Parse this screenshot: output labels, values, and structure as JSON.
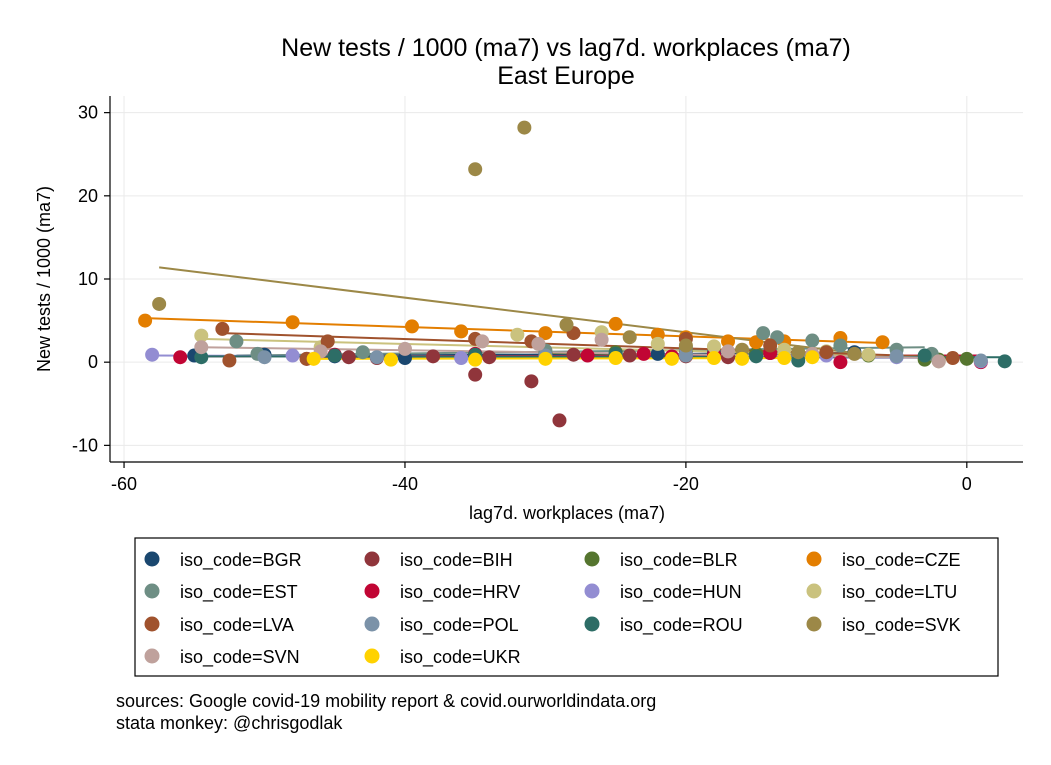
{
  "chart_data": {
    "type": "scatter",
    "title": "New tests / 1000 (ma7) vs lag7d. workplaces (ma7)",
    "subtitle": "East Europe",
    "xlabel": "lag7d. workplaces (ma7)",
    "ylabel": "New tests / 1000 (ma7)",
    "xlim": [
      -61,
      4
    ],
    "ylim": [
      -12,
      32
    ],
    "xticks": [
      -60,
      -40,
      -20,
      0
    ],
    "yticks": [
      -10,
      0,
      10,
      20,
      30
    ],
    "grid": true,
    "legend_position": "bottom",
    "series": [
      {
        "name": "iso_code=BGR",
        "color": "#1a476f",
        "points": [
          [
            -55,
            0.8
          ],
          [
            -50,
            0.9
          ],
          [
            -45,
            0.7
          ],
          [
            -40,
            0.5
          ],
          [
            -35,
            0.9
          ],
          [
            -30,
            1.0
          ],
          [
            -25,
            0.8
          ],
          [
            -22,
            1.0
          ],
          [
            -20,
            0.9
          ],
          [
            -18,
            1.1
          ],
          [
            -15,
            1.0
          ],
          [
            -14,
            1.1
          ],
          [
            -12,
            0.9
          ],
          [
            -10,
            1.0
          ],
          [
            -8,
            1.2
          ]
        ],
        "fit": [
          [
            -55,
            0.7
          ],
          [
            -8,
            1.1
          ]
        ]
      },
      {
        "name": "iso_code=BIH",
        "color": "#90353b",
        "points": [
          [
            -35,
            -1.5
          ],
          [
            -31,
            -2.3
          ],
          [
            -29,
            -7.0
          ],
          [
            -47,
            0.4
          ],
          [
            -44,
            0.6
          ],
          [
            -42,
            0.5
          ],
          [
            -38,
            0.7
          ],
          [
            -34,
            0.6
          ],
          [
            -28,
            0.9
          ],
          [
            -24,
            0.8
          ],
          [
            -20,
            0.7
          ],
          [
            -17,
            0.6
          ],
          [
            -12,
            0.8
          ]
        ],
        "fit": [
          [
            -47,
            0.6
          ],
          [
            -12,
            0.8
          ]
        ]
      },
      {
        "name": "iso_code=BLR",
        "color": "#55752f",
        "points": [
          [
            -30,
            1.0
          ],
          [
            -25,
            1.2
          ],
          [
            -20,
            1.1
          ],
          [
            -15,
            1.0
          ],
          [
            -10,
            0.9
          ],
          [
            -7,
            0.8
          ],
          [
            -3,
            0.3
          ],
          [
            -2,
            0.3
          ],
          [
            0,
            0.4
          ]
        ],
        "fit": [
          [
            -30,
            1.1
          ],
          [
            0,
            0.5
          ]
        ]
      },
      {
        "name": "iso_code=CZE",
        "color": "#e37e00",
        "points": [
          [
            -58.5,
            5.0
          ],
          [
            -48,
            4.8
          ],
          [
            -39.5,
            4.3
          ],
          [
            -36,
            3.7
          ],
          [
            -30,
            3.5
          ],
          [
            -25,
            4.6
          ],
          [
            -22,
            3.3
          ],
          [
            -20,
            3.0
          ],
          [
            -17,
            2.5
          ],
          [
            -15,
            2.4
          ],
          [
            -13,
            2.5
          ],
          [
            -9,
            2.9
          ],
          [
            -6,
            2.4
          ]
        ],
        "fit": [
          [
            -58.5,
            5.3
          ],
          [
            -6,
            2.3
          ]
        ]
      },
      {
        "name": "iso_code=EST",
        "color": "#6e8e84",
        "points": [
          [
            -52,
            2.5
          ],
          [
            -50.5,
            1.0
          ],
          [
            -43,
            1.2
          ],
          [
            -30,
            1.4
          ],
          [
            -20,
            1.8
          ],
          [
            -14.5,
            3.5
          ],
          [
            -13.5,
            3.0
          ],
          [
            -11,
            2.6
          ],
          [
            -9,
            2.0
          ],
          [
            -5,
            1.5
          ],
          [
            -2.5,
            1.0
          ]
        ],
        "fit": [
          [
            -52,
            0.8
          ],
          [
            -3,
            1.8
          ]
        ]
      },
      {
        "name": "iso_code=HRV",
        "color": "#c10534",
        "points": [
          [
            -56,
            0.6
          ],
          [
            -45,
            0.9
          ],
          [
            -35,
            1.0
          ],
          [
            -27,
            0.8
          ],
          [
            -23,
            1.0
          ],
          [
            -21,
            0.7
          ],
          [
            -18,
            0.9
          ],
          [
            -14,
            1.1
          ],
          [
            -9,
            0.0
          ],
          [
            1,
            0.0
          ]
        ],
        "fit": [
          [
            -56,
            0.7
          ],
          [
            1,
            0.8
          ]
        ]
      },
      {
        "name": "iso_code=HUN",
        "color": "#938dd2",
        "points": [
          [
            -58,
            0.9
          ],
          [
            -48,
            0.8
          ],
          [
            -36,
            0.5
          ],
          [
            -20,
            0.9
          ],
          [
            -10,
            0.8
          ],
          [
            -5,
            0.6
          ],
          [
            1,
            0.1
          ]
        ],
        "fit": [
          [
            -58,
            0.8
          ],
          [
            1,
            0.5
          ]
        ]
      },
      {
        "name": "iso_code=LTU",
        "color": "#cac27e",
        "points": [
          [
            -54.5,
            3.2
          ],
          [
            -46,
            1.8
          ],
          [
            -32,
            3.3
          ],
          [
            -26,
            3.6
          ],
          [
            -22,
            2.2
          ],
          [
            -18,
            1.9
          ],
          [
            -13,
            1.5
          ],
          [
            -10,
            1.3
          ],
          [
            -7,
            0.9
          ],
          [
            -2,
            0.1
          ]
        ],
        "fit": [
          [
            -54.5,
            2.8
          ],
          [
            -2,
            0.6
          ]
        ]
      },
      {
        "name": "iso_code=LVA",
        "color": "#a0522d",
        "points": [
          [
            -53,
            4.0
          ],
          [
            -52.5,
            0.2
          ],
          [
            -47,
            0.4
          ],
          [
            -45.5,
            2.5
          ],
          [
            -35,
            2.8
          ],
          [
            -31,
            2.5
          ],
          [
            -28,
            3.5
          ],
          [
            -20,
            2.8
          ],
          [
            -14,
            2.0
          ],
          [
            -10,
            1.2
          ],
          [
            -1,
            0.5
          ]
        ],
        "fit": [
          [
            -53,
            3.5
          ],
          [
            -1,
            0.6
          ]
        ]
      },
      {
        "name": "iso_code=POL",
        "color": "#7b92a8",
        "points": [
          [
            -50,
            0.6
          ],
          [
            -42,
            0.6
          ],
          [
            -30,
            0.8
          ],
          [
            -20,
            0.8
          ],
          [
            -12,
            0.9
          ],
          [
            -5,
            0.7
          ],
          [
            1,
            0.2
          ]
        ],
        "fit": [
          [
            -50,
            0.7
          ],
          [
            1,
            0.6
          ]
        ]
      },
      {
        "name": "iso_code=ROU",
        "color": "#2d6d66",
        "points": [
          [
            -54.5,
            0.6
          ],
          [
            -45,
            0.8
          ],
          [
            -35,
            0.9
          ],
          [
            -25,
            1.0
          ],
          [
            -15,
            0.7
          ],
          [
            -12,
            0.2
          ],
          [
            -3,
            0.8
          ],
          [
            2.7,
            0.1
          ]
        ],
        "fit": [
          [
            -54.5,
            0.7
          ],
          [
            2.7,
            0.6
          ]
        ]
      },
      {
        "name": "iso_code=SVK",
        "color": "#9c8847",
        "points": [
          [
            -57.5,
            7.0
          ],
          [
            -35,
            23.2
          ],
          [
            -31.5,
            28.2
          ],
          [
            -28.5,
            4.5
          ],
          [
            -24,
            3.0
          ],
          [
            -20,
            2.0
          ],
          [
            -16,
            1.5
          ],
          [
            -12,
            1.2
          ],
          [
            -8,
            1.0
          ]
        ],
        "fit": [
          [
            -57.5,
            11.4
          ],
          [
            -8,
            1.1
          ]
        ]
      },
      {
        "name": "iso_code=SVN",
        "color": "#bfa19c",
        "points": [
          [
            -54.5,
            1.8
          ],
          [
            -46,
            1.3
          ],
          [
            -40,
            1.6
          ],
          [
            -34.5,
            2.5
          ],
          [
            -30.5,
            2.2
          ],
          [
            -26,
            2.7
          ],
          [
            -17,
            1.3
          ],
          [
            -11,
            1.0
          ],
          [
            -2,
            0.1
          ]
        ],
        "fit": [
          [
            -54.5,
            1.8
          ],
          [
            -2,
            0.5
          ]
        ]
      },
      {
        "name": "iso_code=UKR",
        "color": "#ffd200",
        "points": [
          [
            -46.5,
            0.4
          ],
          [
            -41,
            0.3
          ],
          [
            -35,
            0.3
          ],
          [
            -30,
            0.4
          ],
          [
            -25,
            0.5
          ],
          [
            -21,
            0.4
          ],
          [
            -18,
            0.5
          ],
          [
            -16,
            0.4
          ],
          [
            -13,
            0.5
          ],
          [
            -11,
            0.6
          ]
        ],
        "fit": [
          [
            -46.5,
            0.4
          ],
          [
            -11,
            0.5
          ]
        ]
      }
    ]
  },
  "notes": {
    "line1": "sources: Google covid-19 mobility report & covid.ourworldindata.org",
    "line2": "stata monkey: @chrisgodlak"
  }
}
